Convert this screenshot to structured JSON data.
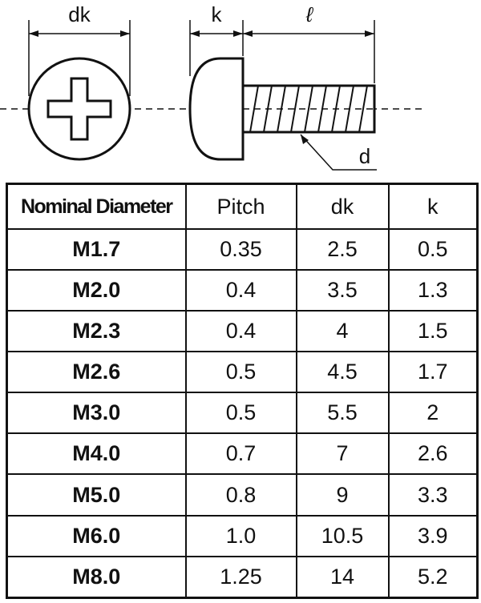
{
  "diagram": {
    "labels": {
      "dk": "dk",
      "k": "k",
      "l": "ℓ",
      "d": "d"
    }
  },
  "table": {
    "header": [
      "Nominal Diameter",
      "Pitch",
      "dk",
      "k"
    ],
    "rows": [
      [
        "M1.7",
        "0.35",
        "2.5",
        "0.5"
      ],
      [
        "M2.0",
        "0.4",
        "3.5",
        "1.3"
      ],
      [
        "M2.3",
        "0.4",
        "4",
        "1.5"
      ],
      [
        "M2.6",
        "0.5",
        "4.5",
        "1.7"
      ],
      [
        "M3.0",
        "0.5",
        "5.5",
        "2"
      ],
      [
        "M4.0",
        "0.7",
        "7",
        "2.6"
      ],
      [
        "M5.0",
        "0.8",
        "9",
        "3.3"
      ],
      [
        "M6.0",
        "1.0",
        "10.5",
        "3.9"
      ],
      [
        "M8.0",
        "1.25",
        "14",
        "5.2"
      ]
    ]
  }
}
